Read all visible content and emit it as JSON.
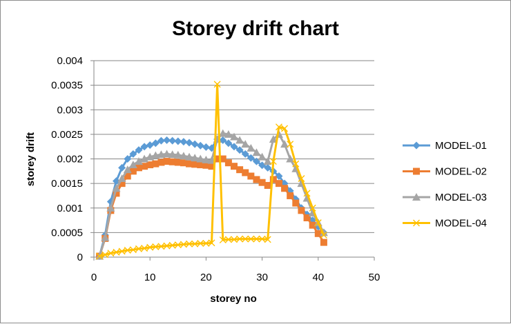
{
  "chart_data": {
    "type": "line",
    "title": "Storey drift chart",
    "xlabel": "storey no",
    "ylabel": "storey drift",
    "xlim": [
      0,
      50
    ],
    "ylim": [
      0,
      0.004
    ],
    "xticks": [
      0,
      10,
      20,
      30,
      40,
      50
    ],
    "yticks": [
      0,
      0.0005,
      0.001,
      0.0015,
      0.002,
      0.0025,
      0.003,
      0.0035,
      0.004
    ],
    "xtick_labels": [
      "0",
      "10",
      "20",
      "30",
      "40",
      "50"
    ],
    "ytick_labels": [
      "0",
      "0.0005",
      "0.001",
      "0.0015",
      "0.002",
      "0.0025",
      "0.003",
      "0.0035",
      "0.004"
    ],
    "grid": "horizontal",
    "legend_position": "right",
    "series": [
      {
        "name": "MODEL-01",
        "color": "#5B9BD5",
        "marker": "diamond",
        "x": [
          1,
          2,
          3,
          4,
          5,
          6,
          7,
          8,
          9,
          10,
          11,
          12,
          13,
          14,
          15,
          16,
          17,
          18,
          19,
          20,
          21,
          22,
          23,
          24,
          25,
          26,
          27,
          28,
          29,
          30,
          31,
          32,
          33,
          34,
          35,
          36,
          37,
          38,
          39,
          40,
          41
        ],
        "y": [
          2e-05,
          0.00045,
          0.00113,
          0.00155,
          0.00182,
          0.002,
          0.0021,
          0.00218,
          0.00225,
          0.00228,
          0.00232,
          0.00237,
          0.00238,
          0.00237,
          0.00236,
          0.00235,
          0.00233,
          0.0023,
          0.00227,
          0.00224,
          0.00222,
          0.0024,
          0.00238,
          0.00232,
          0.00225,
          0.00218,
          0.0021,
          0.00202,
          0.00195,
          0.00187,
          0.00182,
          0.00175,
          0.00165,
          0.0015,
          0.00135,
          0.00118,
          0.001,
          0.00087,
          0.00075,
          0.00062,
          0.0005
        ]
      },
      {
        "name": "MODEL-02",
        "color": "#ED7D31",
        "marker": "square",
        "x": [
          1,
          2,
          3,
          4,
          5,
          6,
          7,
          8,
          9,
          10,
          11,
          12,
          13,
          14,
          15,
          16,
          17,
          18,
          19,
          20,
          21,
          22,
          23,
          24,
          25,
          26,
          27,
          28,
          29,
          30,
          31,
          32,
          33,
          34,
          35,
          36,
          37,
          38,
          39,
          40,
          41
        ],
        "y": [
          2e-05,
          0.00038,
          0.00095,
          0.0013,
          0.0015,
          0.00165,
          0.00175,
          0.00182,
          0.00185,
          0.00188,
          0.0019,
          0.00193,
          0.00195,
          0.00194,
          0.00193,
          0.00192,
          0.0019,
          0.00189,
          0.00188,
          0.00187,
          0.00185,
          0.002,
          0.002,
          0.00192,
          0.00185,
          0.00178,
          0.00172,
          0.00165,
          0.00158,
          0.00152,
          0.00146,
          0.00158,
          0.0015,
          0.0014,
          0.00125,
          0.0011,
          0.00095,
          0.0008,
          0.00065,
          0.00048,
          0.0003
        ]
      },
      {
        "name": "MODEL-03",
        "color": "#A5A5A5",
        "marker": "triangle",
        "x": [
          1,
          2,
          3,
          4,
          5,
          6,
          7,
          8,
          9,
          10,
          11,
          12,
          13,
          14,
          15,
          16,
          17,
          18,
          19,
          20,
          21,
          22,
          23,
          24,
          25,
          26,
          27,
          28,
          29,
          30,
          31,
          32,
          33,
          34,
          35,
          36,
          37,
          38,
          39,
          40,
          41
        ],
        "y": [
          2e-05,
          0.0004,
          0.001,
          0.0014,
          0.0016,
          0.00178,
          0.00188,
          0.00195,
          0.002,
          0.00204,
          0.00207,
          0.00209,
          0.0021,
          0.00209,
          0.00208,
          0.00206,
          0.00204,
          0.00202,
          0.002,
          0.00198,
          0.00197,
          0.0024,
          0.00252,
          0.0025,
          0.00245,
          0.00238,
          0.0023,
          0.00222,
          0.00213,
          0.00204,
          0.00195,
          0.0024,
          0.0025,
          0.0023,
          0.002,
          0.0018,
          0.0015,
          0.0012,
          0.0009,
          0.0007,
          0.0005
        ]
      },
      {
        "name": "MODEL-04",
        "color": "#FFC000",
        "marker": "x",
        "x": [
          1,
          2,
          3,
          4,
          5,
          6,
          7,
          8,
          9,
          10,
          11,
          12,
          13,
          14,
          15,
          16,
          17,
          18,
          19,
          20,
          21,
          22,
          23,
          24,
          25,
          26,
          27,
          28,
          29,
          30,
          31,
          32,
          33,
          34,
          35,
          36,
          37,
          38,
          39,
          40,
          41
        ],
        "y": [
          2e-05,
          5e-05,
          8e-05,
          0.0001,
          0.00012,
          0.00014,
          0.00015,
          0.00017,
          0.00018,
          0.0002,
          0.00021,
          0.00022,
          0.00023,
          0.00024,
          0.00025,
          0.00026,
          0.00027,
          0.00027,
          0.00028,
          0.00028,
          0.00029,
          0.00352,
          0.00035,
          0.00036,
          0.00036,
          0.00037,
          0.00037,
          0.00037,
          0.00037,
          0.00037,
          0.00036,
          0.00195,
          0.00265,
          0.00262,
          0.0023,
          0.0019,
          0.0016,
          0.0013,
          0.001,
          0.0007,
          0.00045
        ]
      }
    ]
  }
}
